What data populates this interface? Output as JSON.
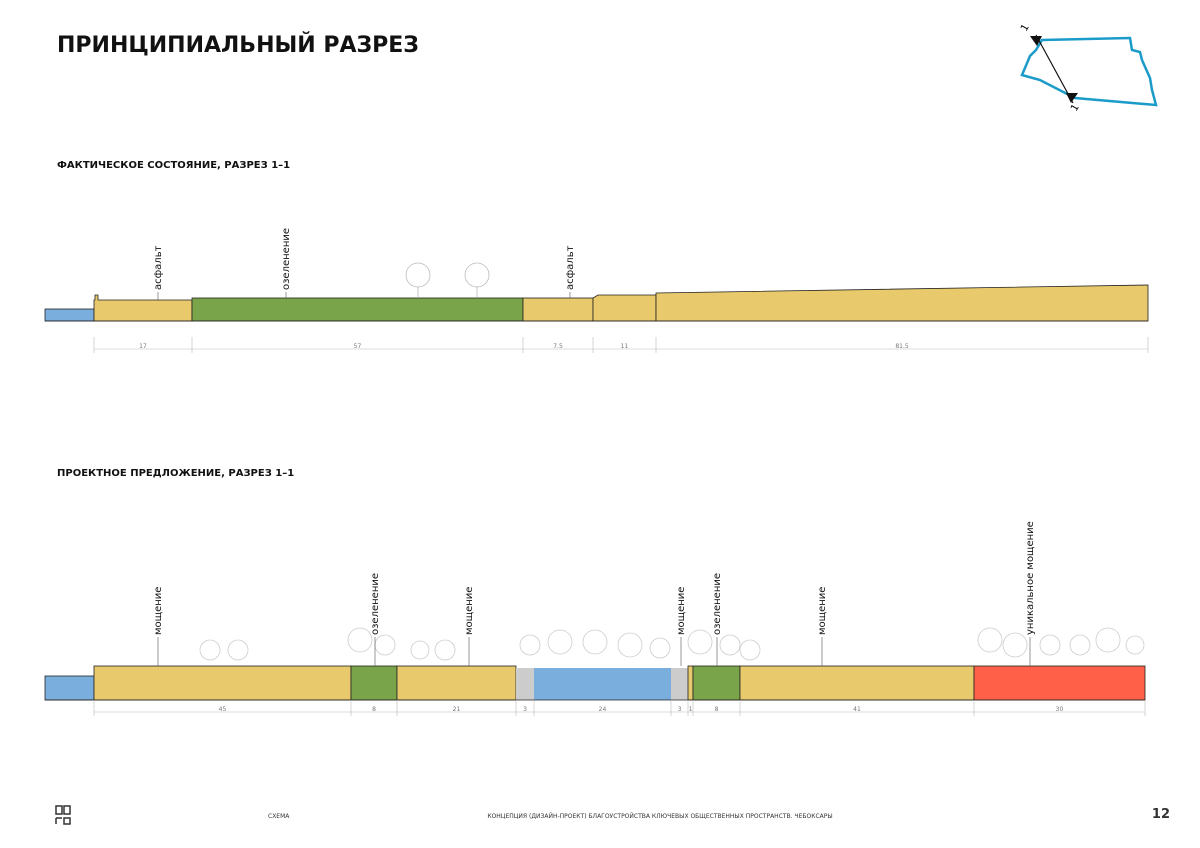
{
  "header": {
    "title": "ПРИНЦИПИАЛЬНЫЙ РАЗРЕЗ"
  },
  "key_plan": {
    "labels": [
      "1",
      "1"
    ]
  },
  "existing": {
    "title": "ФАКТИЧЕСКОЕ СОСТОЯНИЕ, РАЗРЕЗ 1–1",
    "labels": [
      "асфальт",
      "озеленение",
      "асфальт"
    ],
    "dimensions": [
      17,
      57,
      7.5,
      11,
      81.5
    ]
  },
  "proposal": {
    "title": "ПРОЕКТНОЕ ПРЕДЛОЖЕНИЕ, РАЗРЕЗ 1–1",
    "labels": [
      "мощение",
      "озеленение",
      "мощение",
      "мощение",
      "озеленение",
      "мощение",
      "уникальное мощение"
    ],
    "dimensions": [
      45,
      8,
      21,
      3,
      24,
      3,
      1,
      8,
      41,
      30
    ]
  },
  "footer": {
    "left": "СХЕМА",
    "center": "КОНЦЕПЦИЯ (ДИЗАЙН-ПРОЕКТ) БЛАГОУСТРОЙСТВА КЛЮЧЕВЫХ ОБЩЕСТВЕННЫХ ПРОСТРАНСТВ. ЧЕБОКСАРЫ",
    "page": 12
  }
}
